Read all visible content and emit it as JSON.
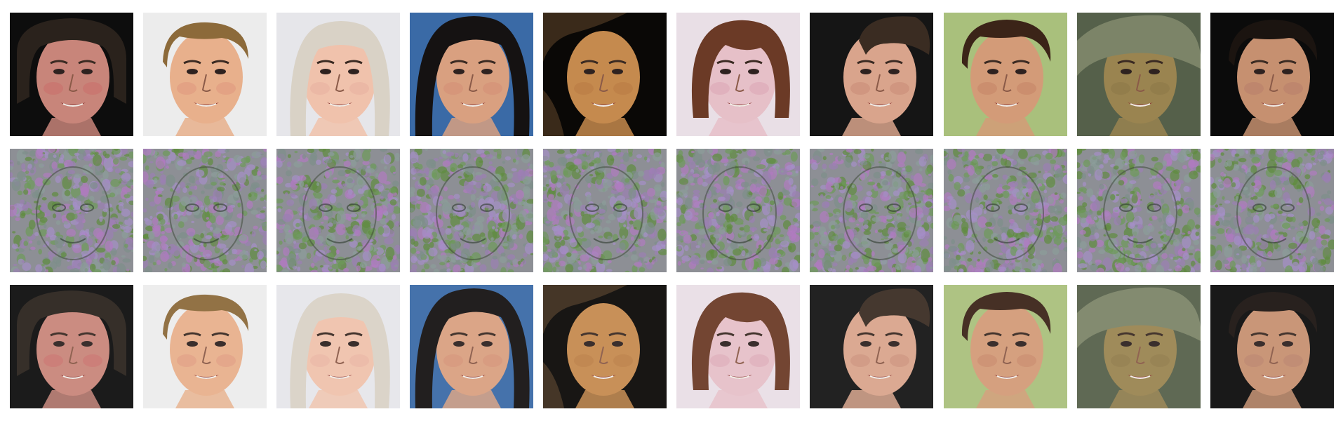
{
  "figure": {
    "columns": 10,
    "rows": [
      {
        "role": "original"
      },
      {
        "role": "perturbation-noise"
      },
      {
        "role": "reconstruction"
      }
    ]
  },
  "faces": [
    {
      "bg": "#0d0d0d",
      "skin": "#c8857a",
      "hair": "#2a221c",
      "hair_style": "curly-dark",
      "cheek": "#c96f6a"
    },
    {
      "bg": "#ececec",
      "skin": "#e8b08c",
      "hair": "#8c6a3a",
      "hair_style": "short-blond",
      "cheek": "#df9a7e"
    },
    {
      "bg": "#e6e6ea",
      "skin": "#f0c2ac",
      "hair": "#d9d2c6",
      "hair_style": "long-platinum",
      "cheek": "#e7b0a0"
    },
    {
      "bg": "#3a6aa6",
      "skin": "#d9a080",
      "hair": "#151212",
      "hair_style": "long-black",
      "cheek": "#d48f76"
    },
    {
      "bg": "#0a0806",
      "skin": "#c58a4e",
      "hair": "#3a2a1a",
      "hair_style": "tilted",
      "cheek": "#b97b44"
    },
    {
      "bg": "#e9dfe6",
      "skin": "#e6c0c8",
      "hair": "#6b3a26",
      "hair_style": "bob-brown",
      "cheek": "#dca6b6"
    },
    {
      "bg": "#151515",
      "skin": "#d9a48c",
      "hair": "#3a2c22",
      "hair_style": "profile",
      "cheek": "#c98d78"
    },
    {
      "bg": "#a9c07c",
      "skin": "#d39b78",
      "hair": "#3b2418",
      "hair_style": "short-dark",
      "cheek": "#c78668"
    },
    {
      "bg": "#55604a",
      "skin": "#9a8450",
      "hair": "#7c8468",
      "hair_style": "cap",
      "cheek": "#8e7848"
    },
    {
      "bg": "#0b0b0b",
      "skin": "#c69070",
      "hair": "#1b1410",
      "hair_style": "short-black",
      "cheek": "#b9806a"
    }
  ],
  "noise_palette": [
    "#9b7fb4",
    "#6d9a5a",
    "#b07ac0",
    "#7d8f8a",
    "#5f8c3f",
    "#a58ec8",
    "#8c9d9a"
  ]
}
